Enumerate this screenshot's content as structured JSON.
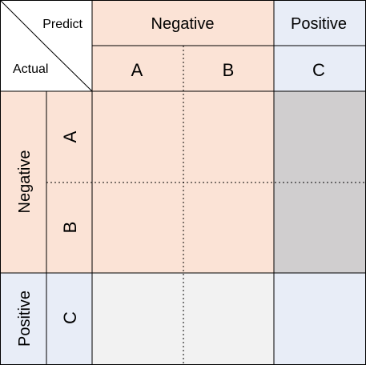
{
  "corner": {
    "predict_label": "Predict",
    "actual_label": "Actual"
  },
  "columns": {
    "groups": [
      {
        "label": "Negative"
      },
      {
        "label": "Positive"
      }
    ],
    "classes": [
      {
        "label": "A"
      },
      {
        "label": "B"
      },
      {
        "label": "C"
      }
    ]
  },
  "rows": {
    "groups": [
      {
        "label": "Negative"
      },
      {
        "label": "Positive"
      }
    ],
    "classes": [
      {
        "label": "A"
      },
      {
        "label": "B"
      },
      {
        "label": "C"
      }
    ]
  },
  "colors": {
    "negative": "#fbe3d6",
    "positive": "#e8edf7",
    "false_positive": "#d0cecf",
    "false_negative": "#f2f2f2",
    "line": "#000000"
  }
}
